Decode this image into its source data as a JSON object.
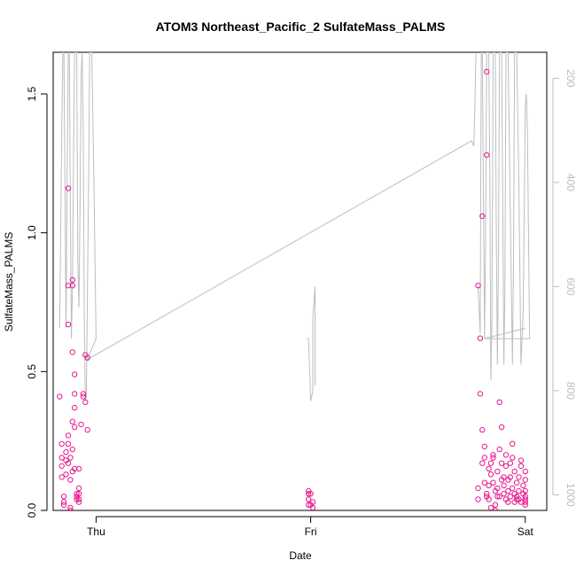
{
  "chart_data": {
    "type": "scatter",
    "title": "ATOM3 Northeast_Pacific_2 SulfateMass_PALMS",
    "xlabel": "Date",
    "ylabel": "SulfateMass_PALMS",
    "x_ticks": [
      "Thu",
      "Fri",
      "Sat"
    ],
    "y_ticks": [
      "0.0",
      "0.5",
      "1.0",
      "1.5"
    ],
    "y2_ticks": [
      "200",
      "400",
      "600",
      "800",
      "1000"
    ],
    "y2_reversed": true,
    "ylim": [
      0,
      1.65
    ],
    "y2lim": [
      1030,
      150
    ],
    "x_range_days": [
      -0.2,
      2.1
    ],
    "colors": {
      "points": "#e8178f",
      "line": "#bdbdbd",
      "axis": "#000000",
      "right_axis": "#bdbdbd"
    },
    "series": [
      {
        "kind": "points",
        "points": [
          [
            -0.17,
            0.41
          ],
          [
            -0.16,
            0.24
          ],
          [
            -0.16,
            0.19
          ],
          [
            -0.16,
            0.16
          ],
          [
            -0.16,
            0.12
          ],
          [
            -0.15,
            0.05
          ],
          [
            -0.15,
            0.03
          ],
          [
            -0.15,
            0.02
          ],
          [
            -0.14,
            0.21
          ],
          [
            -0.14,
            0.18
          ],
          [
            -0.14,
            0.13
          ],
          [
            -0.13,
            0.27
          ],
          [
            -0.13,
            0.24
          ],
          [
            -0.13,
            0.81
          ],
          [
            -0.13,
            0.67
          ],
          [
            -0.13,
            0.17
          ],
          [
            -0.13,
            1.16
          ],
          [
            -0.12,
            0.19
          ],
          [
            -0.12,
            0.11
          ],
          [
            -0.12,
            0.01
          ],
          [
            -0.12,
            0.0
          ],
          [
            -0.11,
            0.22
          ],
          [
            -0.11,
            0.14
          ],
          [
            -0.11,
            0.32
          ],
          [
            -0.11,
            0.57
          ],
          [
            -0.11,
            0.81
          ],
          [
            -0.11,
            0.83
          ],
          [
            -0.1,
            0.49
          ],
          [
            -0.1,
            0.42
          ],
          [
            -0.1,
            0.37
          ],
          [
            -0.1,
            0.3
          ],
          [
            -0.1,
            0.15
          ],
          [
            -0.09,
            0.06
          ],
          [
            -0.09,
            0.04
          ],
          [
            -0.09,
            0.05
          ],
          [
            -0.08,
            0.06
          ],
          [
            -0.08,
            0.03
          ],
          [
            -0.08,
            0.08
          ],
          [
            -0.08,
            0.15
          ],
          [
            -0.08,
            0.04
          ],
          [
            -0.07,
            0.31
          ],
          [
            -0.06,
            0.42
          ],
          [
            -0.06,
            0.41
          ],
          [
            -0.05,
            0.56
          ],
          [
            -0.05,
            0.39
          ],
          [
            -0.04,
            0.55
          ],
          [
            -0.04,
            0.29
          ],
          [
            0.99,
            0.07
          ],
          [
            0.99,
            0.06
          ],
          [
            0.99,
            0.04
          ],
          [
            0.99,
            0.02
          ],
          [
            1.0,
            0.06
          ],
          [
            1.0,
            0.02
          ],
          [
            1.01,
            0.03
          ],
          [
            1.01,
            0.01
          ],
          [
            1.78,
            0.04
          ],
          [
            1.78,
            0.08
          ],
          [
            1.78,
            0.81
          ],
          [
            1.79,
            0.62
          ],
          [
            1.79,
            0.42
          ],
          [
            1.8,
            0.29
          ],
          [
            1.8,
            1.06
          ],
          [
            1.8,
            0.17
          ],
          [
            1.81,
            0.23
          ],
          [
            1.81,
            0.19
          ],
          [
            1.81,
            0.1
          ],
          [
            1.82,
            0.06
          ],
          [
            1.82,
            1.28
          ],
          [
            1.82,
            1.58
          ],
          [
            1.82,
            0.05
          ],
          [
            1.83,
            0.04
          ],
          [
            1.83,
            0.15
          ],
          [
            1.83,
            0.09
          ],
          [
            1.84,
            0.01
          ],
          [
            1.84,
            0.13
          ],
          [
            1.84,
            0.17
          ],
          [
            1.85,
            0.19
          ],
          [
            1.85,
            0.2
          ],
          [
            1.85,
            0.1
          ],
          [
            1.86,
            0.02
          ],
          [
            1.86,
            0.0
          ],
          [
            1.86,
            0.07
          ],
          [
            1.87,
            0.14
          ],
          [
            1.87,
            0.05
          ],
          [
            1.87,
            0.08
          ],
          [
            1.88,
            0.39
          ],
          [
            1.88,
            0.22
          ],
          [
            1.88,
            0.05
          ],
          [
            1.89,
            0.3
          ],
          [
            1.89,
            0.17
          ],
          [
            1.89,
            0.11
          ],
          [
            1.9,
            0.06
          ],
          [
            1.9,
            0.09
          ],
          [
            1.9,
            0.12
          ],
          [
            1.91,
            0.04
          ],
          [
            1.91,
            0.2
          ],
          [
            1.91,
            0.16
          ],
          [
            1.92,
            0.07
          ],
          [
            1.92,
            0.11
          ],
          [
            1.92,
            0.03
          ],
          [
            1.93,
            0.17
          ],
          [
            1.93,
            0.05
          ],
          [
            1.93,
            0.12
          ],
          [
            1.94,
            0.08
          ],
          [
            1.94,
            0.19
          ],
          [
            1.94,
            0.24
          ],
          [
            1.95,
            0.06
          ],
          [
            1.95,
            0.03
          ],
          [
            1.95,
            0.14
          ],
          [
            1.96,
            0.04
          ],
          [
            1.96,
            0.1
          ],
          [
            1.96,
            0.05
          ],
          [
            1.97,
            0.07
          ],
          [
            1.97,
            0.04
          ],
          [
            1.97,
            0.12
          ],
          [
            1.98,
            0.16
          ],
          [
            1.98,
            0.03
          ],
          [
            1.98,
            0.18
          ],
          [
            1.99,
            0.06
          ],
          [
            1.99,
            0.09
          ],
          [
            2.0,
            0.05
          ],
          [
            2.0,
            0.03
          ],
          [
            2.0,
            0.14
          ],
          [
            2.0,
            0.04
          ],
          [
            2.0,
            0.11
          ],
          [
            2.0,
            0.07
          ],
          [
            2.0,
            0.02
          ]
        ]
      },
      {
        "kind": "line",
        "axis": "right",
        "segments": [
          [
            [
              -0.17,
              680
            ],
            [
              -0.16,
              300
            ],
            [
              -0.155,
              150
            ],
            [
              -0.15,
              150
            ],
            [
              -0.145,
              400
            ],
            [
              -0.14,
              680
            ],
            [
              -0.135,
              400
            ],
            [
              -0.13,
              150
            ],
            [
              -0.125,
              150
            ],
            [
              -0.12,
              450
            ],
            [
              -0.115,
              700
            ],
            [
              -0.11,
              600
            ],
            [
              -0.105,
              350
            ],
            [
              -0.1,
              150
            ],
            [
              -0.09,
              150
            ],
            [
              -0.085,
              550
            ],
            [
              -0.08,
              640
            ],
            [
              -0.075,
              450
            ],
            [
              -0.07,
              200
            ],
            [
              -0.065,
              150
            ],
            [
              -0.06,
              300
            ],
            [
              -0.055,
              650
            ],
            [
              -0.05,
              820
            ],
            [
              -0.045,
              810
            ],
            [
              -0.04,
              600
            ],
            [
              -0.035,
              400
            ],
            [
              -0.03,
              150
            ],
            [
              -0.02,
              150
            ],
            [
              -0.01,
              400
            ],
            [
              0.0,
              700
            ],
            [
              -0.04,
              740
            ],
            [
              1.75,
              320
            ],
            [
              1.76,
              330
            ],
            [
              1.765,
              250
            ],
            [
              1.77,
              150
            ]
          ],
          [
            [
              0.98,
              700
            ],
            [
              0.99,
              700
            ],
            [
              1.0,
              820
            ],
            [
              1.01,
              800
            ],
            [
              1.01,
              660
            ],
            [
              1.02,
              600
            ],
            [
              1.02,
              790
            ]
          ],
          [
            [
              1.78,
              600
            ],
            [
              1.79,
              690
            ],
            [
              1.795,
              150
            ],
            [
              1.8,
              150
            ],
            [
              1.81,
              700
            ],
            [
              1.815,
              500
            ],
            [
              1.82,
              150
            ],
            [
              1.83,
              150
            ],
            [
              1.835,
              400
            ],
            [
              1.84,
              780
            ],
            [
              1.845,
              650
            ],
            [
              1.85,
              150
            ],
            [
              1.86,
              150
            ],
            [
              1.865,
              500
            ],
            [
              1.87,
              750
            ],
            [
              1.875,
              550
            ],
            [
              1.88,
              150
            ],
            [
              1.89,
              150
            ],
            [
              1.895,
              450
            ],
            [
              1.9,
              750
            ],
            [
              1.905,
              600
            ],
            [
              1.91,
              150
            ],
            [
              1.92,
              150
            ],
            [
              1.93,
              450
            ],
            [
              1.94,
              750
            ],
            [
              1.945,
              550
            ],
            [
              1.95,
              150
            ],
            [
              1.96,
              150
            ],
            [
              1.97,
              400
            ],
            [
              1.98,
              750
            ],
            [
              1.99,
              650
            ],
            [
              2.0,
              250
            ],
            [
              2.005,
              230
            ],
            [
              2.01,
              300
            ],
            [
              2.02,
              700
            ],
            [
              1.81,
              700
            ],
            [
              2.0,
              680
            ]
          ]
        ]
      }
    ]
  }
}
